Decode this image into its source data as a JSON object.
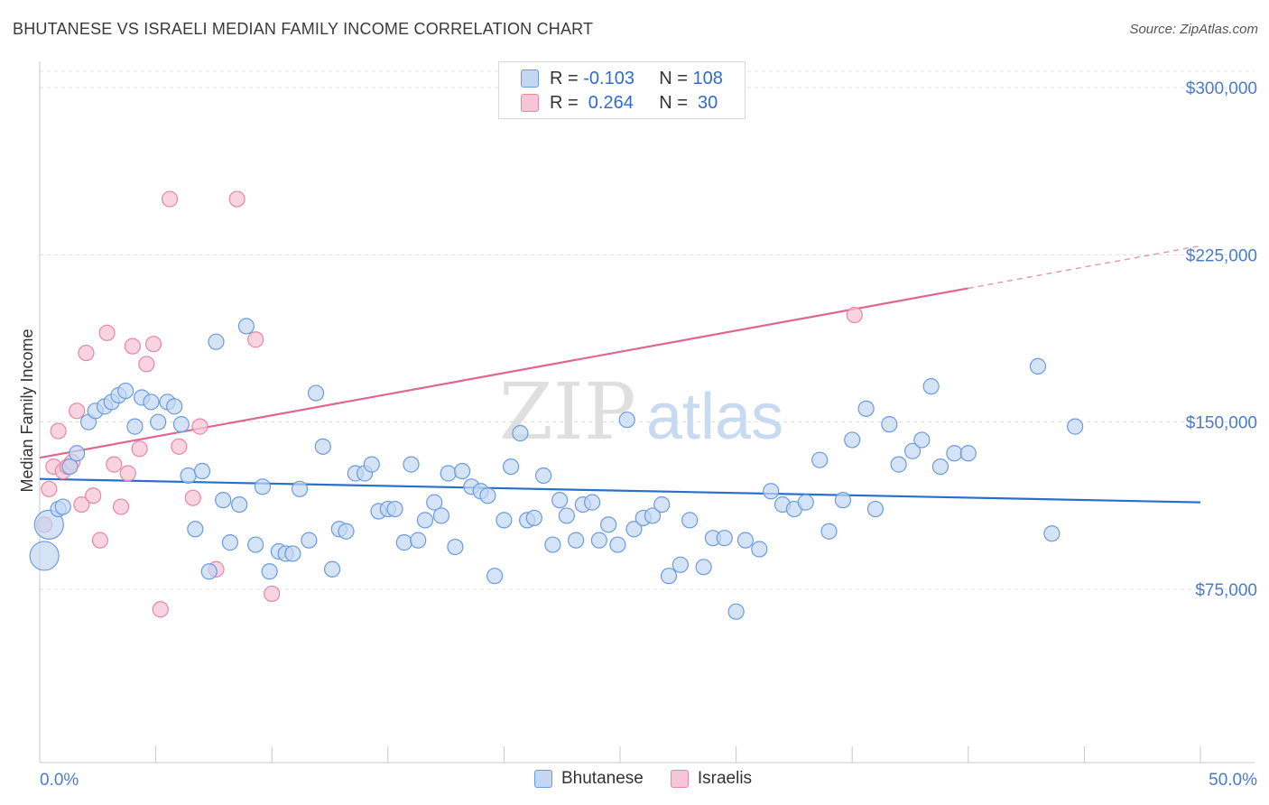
{
  "title": "BHUTANESE VS ISRAELI MEDIAN FAMILY INCOME CORRELATION CHART",
  "source": "Source: ZipAtlas.com",
  "watermark": {
    "zip": "ZIP",
    "atlas": "atlas"
  },
  "legend": {
    "rows": [
      {
        "r_label": "R =",
        "r_value": "-0.103",
        "n_label": "N =",
        "n_value": "108"
      },
      {
        "r_label": "R =",
        "r_value": " 0.264",
        "n_label": "N =",
        "n_value": " 30"
      }
    ]
  },
  "colors": {
    "blue": "#6a9be0",
    "blue_fill": "#c3d7f3",
    "pink": "#e986a5",
    "pink_fill": "#f6c6d6",
    "blue_line": "#2a6fcb",
    "pink_line": "#e06690"
  },
  "chart_data": {
    "type": "scatter",
    "title": "BHUTANESE VS ISRAELI MEDIAN FAMILY INCOME CORRELATION CHART",
    "xlabel": "",
    "ylabel": "Median Family Income",
    "xlim": [
      0,
      50
    ],
    "ylim": [
      0,
      310000
    ],
    "x_tick_labels": [
      "0.0%",
      "50.0%"
    ],
    "y_ticks": [
      75000,
      150000,
      225000,
      300000
    ],
    "y_tick_labels": [
      "$75,000",
      "$150,000",
      "$225,000",
      "$300,000"
    ],
    "legend_position": "top-center",
    "series": [
      {
        "name": "Bhutanese",
        "color": "#6a9be0",
        "trend": {
          "x": [
            0,
            50
          ],
          "y": [
            124500,
            114000
          ]
        },
        "points": [
          [
            0.2,
            90000
          ],
          [
            0.4,
            104000
          ],
          [
            0.8,
            111000
          ],
          [
            1.0,
            112000
          ],
          [
            1.3,
            130000
          ],
          [
            1.6,
            136000
          ],
          [
            2.1,
            150000
          ],
          [
            2.4,
            155000
          ],
          [
            2.8,
            157000
          ],
          [
            3.1,
            159000
          ],
          [
            3.4,
            162000
          ],
          [
            3.7,
            164000
          ],
          [
            4.1,
            148000
          ],
          [
            4.4,
            161000
          ],
          [
            4.8,
            159000
          ],
          [
            5.1,
            150000
          ],
          [
            5.5,
            159000
          ],
          [
            5.8,
            157000
          ],
          [
            6.1,
            149000
          ],
          [
            6.4,
            126000
          ],
          [
            6.7,
            102000
          ],
          [
            7.0,
            128000
          ],
          [
            7.3,
            83000
          ],
          [
            7.6,
            186000
          ],
          [
            7.9,
            115000
          ],
          [
            8.2,
            96000
          ],
          [
            8.6,
            113000
          ],
          [
            8.9,
            193000
          ],
          [
            9.3,
            95000
          ],
          [
            9.6,
            121000
          ],
          [
            9.9,
            83000
          ],
          [
            10.3,
            92000
          ],
          [
            10.6,
            91000
          ],
          [
            10.9,
            91000
          ],
          [
            11.2,
            120000
          ],
          [
            11.6,
            97000
          ],
          [
            11.9,
            163000
          ],
          [
            12.2,
            139000
          ],
          [
            12.6,
            84000
          ],
          [
            12.9,
            102000
          ],
          [
            13.2,
            101000
          ],
          [
            13.6,
            127000
          ],
          [
            14.0,
            127000
          ],
          [
            14.3,
            131000
          ],
          [
            14.6,
            110000
          ],
          [
            15.0,
            111000
          ],
          [
            15.3,
            111000
          ],
          [
            15.7,
            96000
          ],
          [
            16.0,
            131000
          ],
          [
            16.3,
            97000
          ],
          [
            16.6,
            106000
          ],
          [
            17.0,
            114000
          ],
          [
            17.3,
            108000
          ],
          [
            17.6,
            127000
          ],
          [
            17.9,
            94000
          ],
          [
            18.2,
            128000
          ],
          [
            18.6,
            121000
          ],
          [
            19.0,
            119000
          ],
          [
            19.3,
            117000
          ],
          [
            19.6,
            81000
          ],
          [
            20.0,
            106000
          ],
          [
            20.3,
            130000
          ],
          [
            20.7,
            145000
          ],
          [
            21.0,
            106000
          ],
          [
            21.3,
            107000
          ],
          [
            21.7,
            126000
          ],
          [
            22.1,
            95000
          ],
          [
            22.4,
            115000
          ],
          [
            22.7,
            108000
          ],
          [
            23.1,
            97000
          ],
          [
            23.4,
            113000
          ],
          [
            23.8,
            114000
          ],
          [
            24.1,
            97000
          ],
          [
            24.5,
            104000
          ],
          [
            24.9,
            95000
          ],
          [
            25.3,
            151000
          ],
          [
            25.6,
            102000
          ],
          [
            26.0,
            107000
          ],
          [
            26.4,
            108000
          ],
          [
            26.8,
            113000
          ],
          [
            27.1,
            81000
          ],
          [
            27.6,
            86000
          ],
          [
            28.0,
            106000
          ],
          [
            28.6,
            85000
          ],
          [
            29.0,
            98000
          ],
          [
            29.5,
            98000
          ],
          [
            30.0,
            65000
          ],
          [
            30.4,
            97000
          ],
          [
            31.0,
            93000
          ],
          [
            31.5,
            119000
          ],
          [
            32.0,
            113000
          ],
          [
            32.5,
            111000
          ],
          [
            33.0,
            114000
          ],
          [
            33.6,
            133000
          ],
          [
            34.0,
            101000
          ],
          [
            34.6,
            115000
          ],
          [
            35.0,
            142000
          ],
          [
            35.6,
            156000
          ],
          [
            36.0,
            111000
          ],
          [
            36.6,
            149000
          ],
          [
            37.0,
            131000
          ],
          [
            37.6,
            137000
          ],
          [
            38.0,
            142000
          ],
          [
            38.4,
            166000
          ],
          [
            38.8,
            130000
          ],
          [
            39.4,
            136000
          ],
          [
            40.0,
            136000
          ],
          [
            43.0,
            175000
          ],
          [
            43.6,
            100000
          ],
          [
            44.6,
            148000
          ]
        ],
        "large_points": [
          [
            0.2,
            90000
          ],
          [
            0.4,
            104000
          ]
        ]
      },
      {
        "name": "Israelis",
        "color": "#e986a5",
        "trend": {
          "x": [
            0,
            40
          ],
          "y": [
            134000,
            210000
          ],
          "dashed_to": {
            "x": 50,
            "y": 229000
          }
        },
        "points": [
          [
            0.2,
            104000
          ],
          [
            0.4,
            120000
          ],
          [
            0.6,
            130000
          ],
          [
            0.8,
            146000
          ],
          [
            1.0,
            128000
          ],
          [
            1.2,
            130000
          ],
          [
            1.4,
            132000
          ],
          [
            1.6,
            155000
          ],
          [
            1.8,
            113000
          ],
          [
            2.0,
            181000
          ],
          [
            2.3,
            117000
          ],
          [
            2.6,
            97000
          ],
          [
            2.9,
            190000
          ],
          [
            3.2,
            131000
          ],
          [
            3.5,
            112000
          ],
          [
            3.8,
            127000
          ],
          [
            4.0,
            184000
          ],
          [
            4.3,
            138000
          ],
          [
            4.6,
            176000
          ],
          [
            4.9,
            185000
          ],
          [
            5.2,
            66000
          ],
          [
            5.6,
            250000
          ],
          [
            6.0,
            139000
          ],
          [
            6.6,
            116000
          ],
          [
            6.9,
            148000
          ],
          [
            7.6,
            84000
          ],
          [
            8.5,
            250000
          ],
          [
            9.3,
            187000
          ],
          [
            10.0,
            73000
          ],
          [
            35.1,
            198000
          ]
        ]
      }
    ]
  },
  "bottom_legend": {
    "series_1": "Bhutanese",
    "series_2": "Israelis"
  }
}
